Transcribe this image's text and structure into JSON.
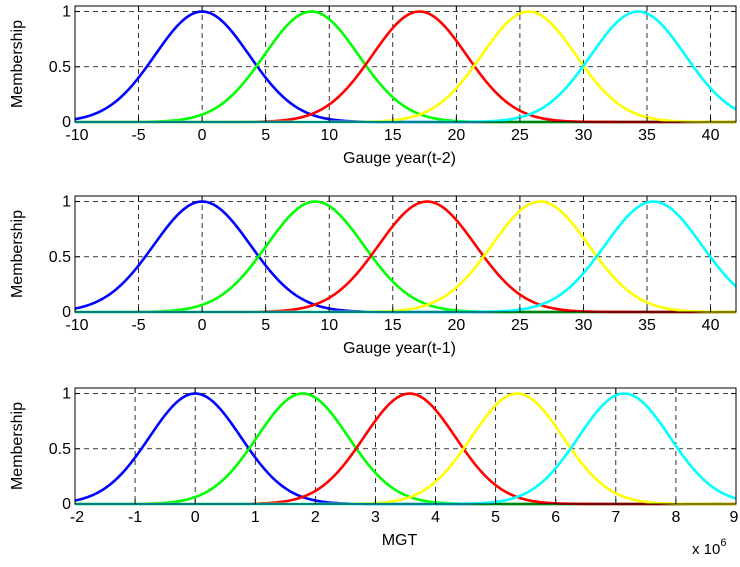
{
  "chart_data": [
    {
      "type": "line",
      "xlabel": "Gauge year(t-2)",
      "ylabel": "Membership",
      "xlim": [
        -10,
        42
      ],
      "ylim": [
        0,
        1.05
      ],
      "xticks": [
        -10,
        -5,
        0,
        5,
        10,
        15,
        20,
        25,
        30,
        35,
        40
      ],
      "xtick_labels": [
        "-10",
        "-5",
        "0",
        "5",
        "10",
        "15",
        "20",
        "25",
        "30",
        "35",
        "40"
      ],
      "yticks": [
        0,
        0.5,
        1
      ],
      "ytick_labels": [
        "0",
        "0.5",
        "1"
      ],
      "grid": true,
      "gaussian_mf": [
        {
          "color": "#0000ff",
          "center": 0,
          "sigma": 3.7
        },
        {
          "color": "#00ff00",
          "center": 8.6,
          "sigma": 3.7
        },
        {
          "color": "#ff0000",
          "center": 17.1,
          "sigma": 3.7
        },
        {
          "color": "#ffff00",
          "center": 25.7,
          "sigma": 3.7
        },
        {
          "color": "#00ffff",
          "center": 34.3,
          "sigma": 3.7
        }
      ]
    },
    {
      "type": "line",
      "xlabel": "Gauge year(t-1)",
      "ylabel": "Membership",
      "xlim": [
        -10,
        42
      ],
      "ylim": [
        0,
        1.05
      ],
      "xticks": [
        -10,
        -5,
        0,
        5,
        10,
        15,
        20,
        25,
        30,
        35,
        40
      ],
      "xtick_labels": [
        "-10",
        "-5",
        "0",
        "5",
        "10",
        "15",
        "20",
        "25",
        "30",
        "35",
        "40"
      ],
      "yticks": [
        0,
        0.5,
        1
      ],
      "ytick_labels": [
        "0",
        "0.5",
        "1"
      ],
      "grid": true,
      "gaussian_mf": [
        {
          "color": "#0000ff",
          "center": 0,
          "sigma": 3.8
        },
        {
          "color": "#00ff00",
          "center": 8.9,
          "sigma": 3.8
        },
        {
          "color": "#ff0000",
          "center": 17.7,
          "sigma": 3.8
        },
        {
          "color": "#ffff00",
          "center": 26.6,
          "sigma": 3.8
        },
        {
          "color": "#00ffff",
          "center": 35.5,
          "sigma": 3.8
        }
      ]
    },
    {
      "type": "line",
      "xlabel": "MGT",
      "ylabel": "Membership",
      "xlim": [
        -2,
        9
      ],
      "ylim": [
        0,
        1.05
      ],
      "xticks": [
        -2,
        -1,
        0,
        1,
        2,
        3,
        4,
        5,
        6,
        7,
        8,
        9
      ],
      "xtick_labels": [
        "-2",
        "-1",
        "0",
        "1",
        "2",
        "3",
        "4",
        "5",
        "6",
        "7",
        "8",
        "9"
      ],
      "yticks": [
        0,
        0.5,
        1
      ],
      "ytick_labels": [
        "0",
        "0.5",
        "1"
      ],
      "grid": true,
      "axis_multiplier_base": "x 10",
      "axis_multiplier_exponent": "6",
      "gaussian_mf": [
        {
          "color": "#0000ff",
          "center": 0,
          "sigma": 0.76
        },
        {
          "color": "#00ff00",
          "center": 1.79,
          "sigma": 0.76
        },
        {
          "color": "#ff0000",
          "center": 3.57,
          "sigma": 0.76
        },
        {
          "color": "#ffff00",
          "center": 5.36,
          "sigma": 0.76
        },
        {
          "color": "#00ffff",
          "center": 7.14,
          "sigma": 0.76
        }
      ]
    }
  ]
}
